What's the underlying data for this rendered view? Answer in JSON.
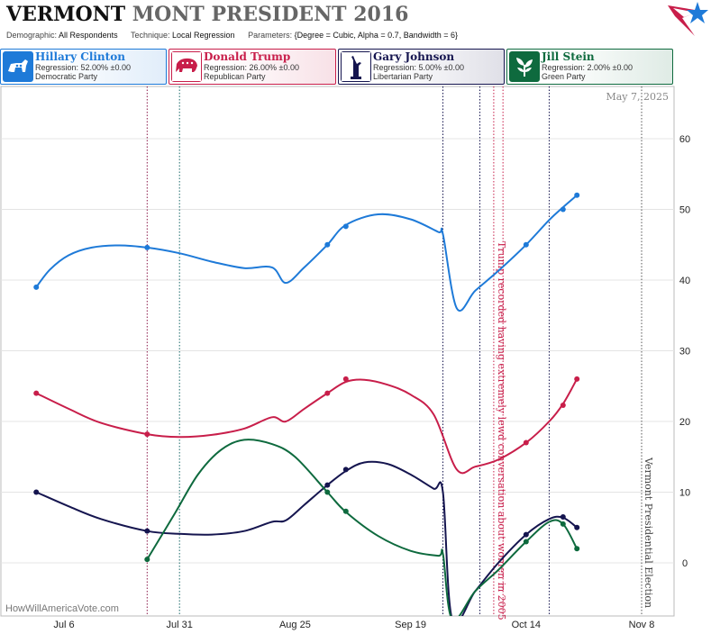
{
  "header": {
    "state": "VERMONT",
    "title_rest": "MONT PRESIDENT 2016",
    "demographic_label": "Demographic:",
    "demographic_value": "All Respondents",
    "technique_label": "Technique:",
    "technique_value": "Local Regression",
    "parameters_label": "Parameters:",
    "parameters_value": "{Degree = Cubic, Alpha = 0.7, Bandwidth = 6}"
  },
  "legend": [
    {
      "name": "Hillary Clinton",
      "regression": "Regression: 52.00% ±0.00",
      "party": "Democratic Party",
      "color": "#1e7ad8",
      "icon": "donkey-icon"
    },
    {
      "name": "Donald Trump",
      "regression": "Regression: 26.00% ±0.00",
      "party": "Republican Party",
      "color": "#c81e4a",
      "icon": "elephant-icon"
    },
    {
      "name": "Gary Johnson",
      "regression": "Regression: 5.00% ±0.00",
      "party": "Libertarian Party",
      "color": "#15154f",
      "icon": "liberty-torch-icon"
    },
    {
      "name": "Jill Stein",
      "regression": "Regression: 2.00% ±0.00",
      "party": "Green Party",
      "color": "#0e6a3e",
      "icon": "leaf-icon"
    }
  ],
  "chart_data": {
    "type": "line",
    "date_label": "May 7, 2025",
    "watermark": "HowWillAmericaVote.com",
    "x_ticks": [
      "Jul 6",
      "Jul 31",
      "Aug 25",
      "Sep 19",
      "Oct 14",
      "Nov 8"
    ],
    "y_ticks": [
      "0",
      "10",
      "20",
      "30",
      "40",
      "50",
      "60"
    ],
    "ylim": [
      -8,
      67
    ],
    "grid": "horizontal",
    "event_lines": [
      {
        "date": "2016-07-24",
        "color": "#8b1a4a"
      },
      {
        "date": "2016-07-31",
        "color": "#1a6a6a"
      },
      {
        "date": "2016-09-26",
        "color": "#15154f"
      },
      {
        "date": "2016-10-04",
        "color": "#15154f"
      },
      {
        "date": "2016-10-07",
        "color": "#c81e4a"
      },
      {
        "date": "2016-10-09",
        "color": "#c81e4a"
      },
      {
        "date": "2016-10-19",
        "color": "#15154f"
      },
      {
        "date": "2016-11-08",
        "color": "#555555"
      }
    ],
    "annotations": [
      {
        "text": "Trump recorded having extremely lewd conversation about women in 2005",
        "date": "2016-10-07",
        "color": "#c81e4a"
      },
      {
        "text": "Vermont Presidential Election",
        "date": "2016-11-08",
        "color": "#444444"
      }
    ],
    "series": [
      {
        "name": "Hillary Clinton",
        "color": "#1e7ad8",
        "line": [
          [
            "2016-06-30",
            39
          ],
          [
            "2016-07-03",
            41.5
          ],
          [
            "2016-07-07",
            43.5
          ],
          [
            "2016-07-12",
            44.6
          ],
          [
            "2016-07-18",
            44.9
          ],
          [
            "2016-07-24",
            44.6
          ],
          [
            "2016-07-31",
            43.8
          ],
          [
            "2016-08-07",
            42.6
          ],
          [
            "2016-08-14",
            41.7
          ],
          [
            "2016-08-20",
            41.8
          ],
          [
            "2016-08-23",
            39.6
          ],
          [
            "2016-08-27",
            41.8
          ],
          [
            "2016-09-01",
            45
          ],
          [
            "2016-09-05",
            47.8
          ],
          [
            "2016-09-12",
            49.3
          ],
          [
            "2016-09-19",
            48.6
          ],
          [
            "2016-09-25",
            46.8
          ],
          [
            "2016-09-26",
            46.5
          ],
          [
            "2016-09-29",
            36
          ],
          [
            "2016-10-03",
            38.5
          ],
          [
            "2016-10-08",
            41.3
          ],
          [
            "2016-10-14",
            45
          ],
          [
            "2016-10-19",
            48.5
          ],
          [
            "2016-10-22",
            50.3
          ],
          [
            "2016-10-25",
            52
          ]
        ],
        "points": [
          [
            "2016-06-30",
            39
          ],
          [
            "2016-07-24",
            44.6
          ],
          [
            "2016-09-01",
            45
          ],
          [
            "2016-09-05",
            47.6
          ],
          [
            "2016-10-14",
            45
          ],
          [
            "2016-10-22",
            50
          ],
          [
            "2016-10-25",
            52
          ]
        ]
      },
      {
        "name": "Donald Trump",
        "color": "#c81e4a",
        "line": [
          [
            "2016-06-30",
            24
          ],
          [
            "2016-07-07",
            21.8
          ],
          [
            "2016-07-14",
            19.8
          ],
          [
            "2016-07-24",
            18.2
          ],
          [
            "2016-07-31",
            17.8
          ],
          [
            "2016-08-07",
            18.1
          ],
          [
            "2016-08-14",
            19
          ],
          [
            "2016-08-20",
            20.6
          ],
          [
            "2016-08-23",
            20
          ],
          [
            "2016-08-27",
            21.8
          ],
          [
            "2016-09-01",
            24
          ],
          [
            "2016-09-05",
            25.6
          ],
          [
            "2016-09-09",
            25.9
          ],
          [
            "2016-09-14",
            25.2
          ],
          [
            "2016-09-19",
            23.8
          ],
          [
            "2016-09-24",
            21
          ],
          [
            "2016-09-29",
            13.2
          ],
          [
            "2016-10-03",
            13.6
          ],
          [
            "2016-10-08",
            14.6
          ],
          [
            "2016-10-14",
            17
          ],
          [
            "2016-10-19",
            20
          ],
          [
            "2016-10-22",
            22.5
          ],
          [
            "2016-10-25",
            26
          ]
        ],
        "points": [
          [
            "2016-06-30",
            24
          ],
          [
            "2016-07-24",
            18.2
          ],
          [
            "2016-09-01",
            24
          ],
          [
            "2016-09-05",
            26
          ],
          [
            "2016-10-14",
            17
          ],
          [
            "2016-10-22",
            22.3
          ],
          [
            "2016-10-25",
            26
          ]
        ]
      },
      {
        "name": "Gary Johnson",
        "color": "#15154f",
        "line": [
          [
            "2016-06-30",
            10
          ],
          [
            "2016-07-07",
            8
          ],
          [
            "2016-07-14",
            6.2
          ],
          [
            "2016-07-24",
            4.5
          ],
          [
            "2016-07-31",
            4.1
          ],
          [
            "2016-08-07",
            4
          ],
          [
            "2016-08-14",
            4.5
          ],
          [
            "2016-08-20",
            5.8
          ],
          [
            "2016-08-23",
            6
          ],
          [
            "2016-08-27",
            8.2
          ],
          [
            "2016-09-01",
            11
          ],
          [
            "2016-09-05",
            13
          ],
          [
            "2016-09-09",
            14.2
          ],
          [
            "2016-09-14",
            14
          ],
          [
            "2016-09-19",
            12.5
          ],
          [
            "2016-09-24",
            10.5
          ],
          [
            "2016-09-26",
            10
          ],
          [
            "2016-09-28",
            -8
          ],
          [
            "2016-10-03",
            -4
          ],
          [
            "2016-10-08",
            0
          ],
          [
            "2016-10-14",
            4
          ],
          [
            "2016-10-19",
            6.2
          ],
          [
            "2016-10-22",
            6.4
          ],
          [
            "2016-10-25",
            5
          ]
        ],
        "points": [
          [
            "2016-06-30",
            10
          ],
          [
            "2016-07-24",
            4.5
          ],
          [
            "2016-09-01",
            11
          ],
          [
            "2016-09-05",
            13.2
          ],
          [
            "2016-10-14",
            4
          ],
          [
            "2016-10-22",
            6.5
          ],
          [
            "2016-10-25",
            5
          ]
        ]
      },
      {
        "name": "Jill Stein",
        "color": "#0e6a3e",
        "line": [
          [
            "2016-07-24",
            0.5
          ],
          [
            "2016-07-30",
            7
          ],
          [
            "2016-08-04",
            12.5
          ],
          [
            "2016-08-09",
            16
          ],
          [
            "2016-08-14",
            17.4
          ],
          [
            "2016-08-20",
            16.8
          ],
          [
            "2016-08-25",
            15
          ],
          [
            "2016-09-01",
            10
          ],
          [
            "2016-09-05",
            7.2
          ],
          [
            "2016-09-12",
            3.8
          ],
          [
            "2016-09-19",
            1.7
          ],
          [
            "2016-09-25",
            1
          ],
          [
            "2016-09-26",
            1.3
          ],
          [
            "2016-09-28",
            -8
          ],
          [
            "2016-10-03",
            -4
          ],
          [
            "2016-10-08",
            -1
          ],
          [
            "2016-10-14",
            3
          ],
          [
            "2016-10-19",
            5.8
          ],
          [
            "2016-10-22",
            5.5
          ],
          [
            "2016-10-25",
            2
          ]
        ],
        "points": [
          [
            "2016-07-24",
            0.5
          ],
          [
            "2016-09-01",
            10
          ],
          [
            "2016-09-05",
            7.3
          ],
          [
            "2016-10-14",
            3
          ],
          [
            "2016-10-22",
            5.5
          ],
          [
            "2016-10-25",
            2
          ]
        ]
      }
    ]
  }
}
